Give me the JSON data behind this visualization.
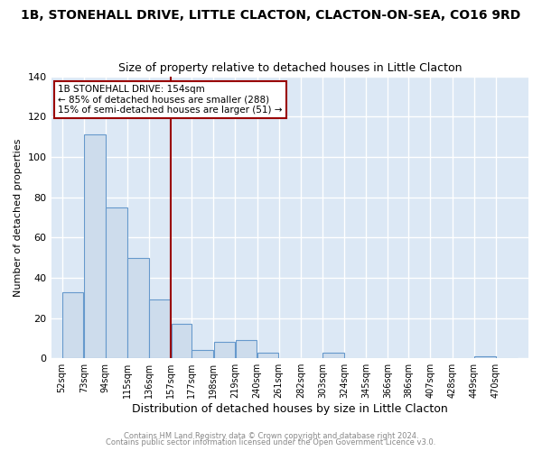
{
  "title": "1B, STONEHALL DRIVE, LITTLE CLACTON, CLACTON-ON-SEA, CO16 9RD",
  "subtitle": "Size of property relative to detached houses in Little Clacton",
  "xlabel": "Distribution of detached houses by size in Little Clacton",
  "ylabel": "Number of detached properties",
  "bar_labels": [
    "52sqm",
    "73sqm",
    "94sqm",
    "115sqm",
    "136sqm",
    "157sqm",
    "177sqm",
    "198sqm",
    "219sqm",
    "240sqm",
    "261sqm",
    "282sqm",
    "303sqm",
    "324sqm",
    "345sqm",
    "366sqm",
    "386sqm",
    "407sqm",
    "428sqm",
    "449sqm",
    "470sqm"
  ],
  "bar_values": [
    33,
    111,
    75,
    50,
    29,
    17,
    4,
    8,
    9,
    3,
    0,
    0,
    3,
    0,
    0,
    0,
    0,
    0,
    0,
    1,
    0
  ],
  "bar_edges": [
    52,
    73,
    94,
    115,
    136,
    157,
    177,
    198,
    219,
    240,
    261,
    282,
    303,
    324,
    345,
    366,
    386,
    407,
    428,
    449,
    470,
    491
  ],
  "bar_color": "#cddcec",
  "bar_edge_color": "#6699cc",
  "vline_x": 157,
  "vline_color": "#990000",
  "annotation_title": "1B STONEHALL DRIVE: 154sqm",
  "annotation_line1": "← 85% of detached houses are smaller (288)",
  "annotation_line2": "15% of semi-detached houses are larger (51) →",
  "annotation_box_color": "#ffffff",
  "annotation_box_edge": "#990000",
  "ylim": [
    0,
    140
  ],
  "yticks": [
    0,
    20,
    40,
    60,
    80,
    100,
    120,
    140
  ],
  "footer1": "Contains HM Land Registry data © Crown copyright and database right 2024.",
  "footer2": "Contains public sector information licensed under the Open Government Licence v3.0.",
  "bg_color": "#ffffff",
  "plot_bg_color": "#dce8f5",
  "grid_color": "#ffffff",
  "title_fontsize": 10,
  "subtitle_fontsize": 9,
  "footer_color": "#888888"
}
